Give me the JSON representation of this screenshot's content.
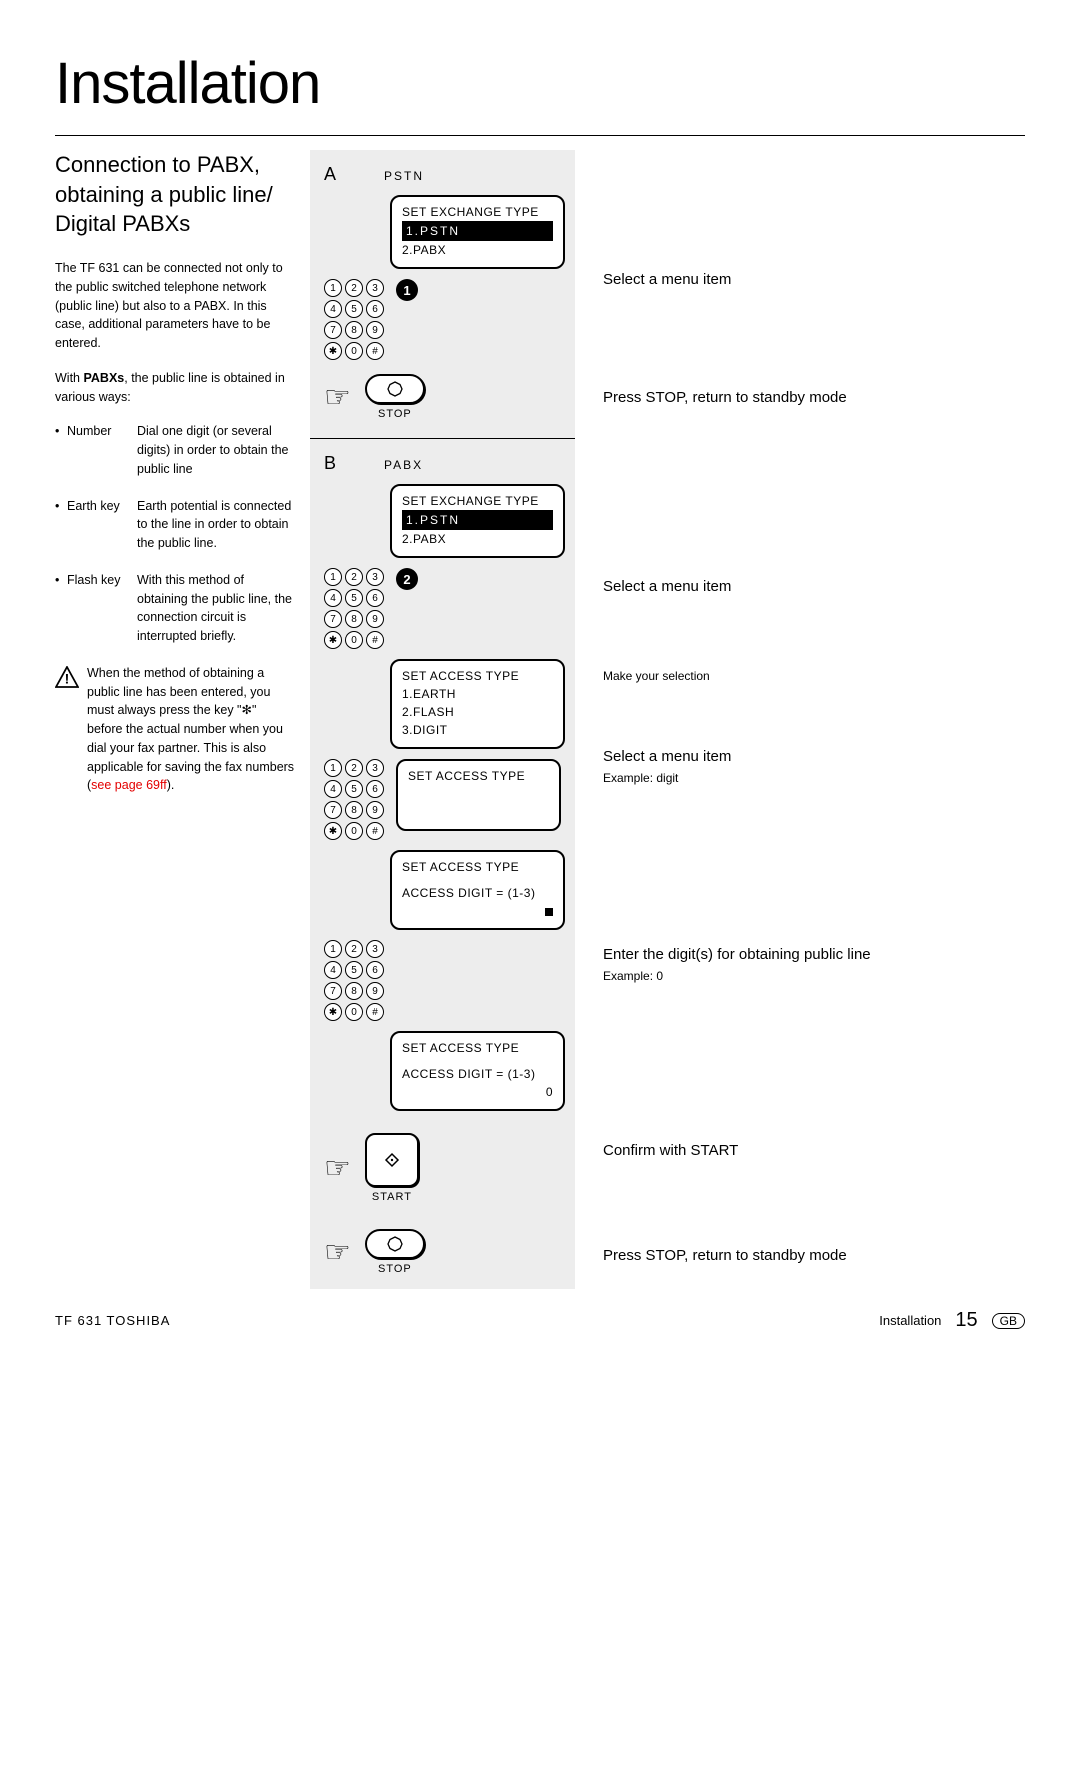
{
  "page_title": "Installation",
  "left": {
    "heading": "Connection to PABX, obtaining a public line/ Digital PABXs",
    "para1_a": "The TF 631 can be connected not only to the public switched telephone network (public line) but also to a PABX. In this case, additional parameters have to be entered.",
    "para2_a": "With ",
    "para2_b": "PABXs",
    "para2_c": ", the public line is obtained in various ways:",
    "bullets": [
      {
        "label": "Number",
        "desc": "Dial one digit (or several digits) in order to obtain the public line"
      },
      {
        "label": "Earth key",
        "desc": "Earth potential is connected to the line in order to obtain the public line."
      },
      {
        "label": "Flash key",
        "desc": "With this method of obtaining the public line, the connection circuit is interrupted briefly."
      }
    ],
    "warning": "When the method of obtaining a public line has been entered, you must always press the key \"✻\" before the actual number when you dial your fax partner. This is also applicable for saving the fax numbers (",
    "warning_link": "see page 69ff",
    "warning_end": ")."
  },
  "sectionA": {
    "letter": "A",
    "tag": "PSTN",
    "lcd1_title": "SET EXCHANGE TYPE",
    "lcd1_sel": "1.PSTN",
    "lcd1_opt": "2.PABX",
    "step_badge": "1",
    "stop_label": "STOP"
  },
  "sectionB": {
    "letter": "B",
    "tag": "PABX",
    "lcd1_title": "SET EXCHANGE TYPE",
    "lcd1_sel": "1.PSTN",
    "lcd1_opt": "2.PABX",
    "step_badge": "2",
    "lcd2_title": "SET ACCESS TYPE",
    "lcd2_l1": "1.EARTH",
    "lcd2_l2": "2.FLASH",
    "lcd2_l3": "3.DIGIT",
    "lcd3_title": "SET ACCESS TYPE",
    "lcd4_title": "SET ACCESS TYPE",
    "lcd4_l1": "ACCESS DIGIT = (1-3)",
    "lcd5_title": "SET ACCESS TYPE",
    "lcd5_l1": "ACCESS DIGIT = (1-3)",
    "lcd5_val": "0",
    "start_label": "START",
    "stop_label": "STOP"
  },
  "right_steps": {
    "a1": "Select a menu item",
    "a2": "Press STOP, return to standby mode",
    "b1": "Select a menu item",
    "b2": "Make your selection",
    "b3": "Select a menu item",
    "b3_sub": "Example: digit",
    "b4": "Enter the digit(s) for obtaining public line",
    "b4_sub": "Example: 0",
    "b5": "Confirm with START",
    "b6": "Press STOP, return to standby mode"
  },
  "keypad_keys": [
    "1",
    "2",
    "3",
    "4",
    "5",
    "6",
    "7",
    "8",
    "9",
    "✱",
    "0",
    "#"
  ],
  "footer": {
    "left": "TF 631   TOSHIBA",
    "section": "Installation",
    "page": "15",
    "lang": "GB"
  },
  "colors": {
    "bg_gray": "#ededed",
    "link_red": "#e30000"
  }
}
